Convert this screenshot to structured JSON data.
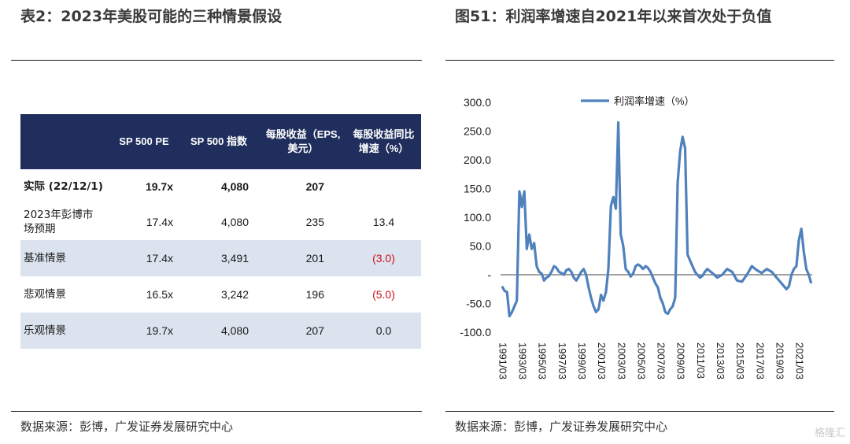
{
  "left_panel": {
    "title": "表2：2023年美股可能的三种情景假设",
    "source": "数据来源：彭博，广发证券发展研究中心",
    "table": {
      "headers": [
        "",
        "SP 500 PE",
        "SP 500 指数",
        "每股收益（EPS, 美元）",
        "每股收益同比增速（%）"
      ],
      "rows": [
        {
          "label": "实际 (22/12/1)",
          "pe": "19.7x",
          "index": "4,080",
          "eps": "207",
          "growth": "",
          "bold": true,
          "shade": false,
          "neg": false
        },
        {
          "label": "2023年彭博市场预期",
          "pe": "17.4x",
          "index": "4,080",
          "eps": "235",
          "growth": "13.4",
          "bold": false,
          "shade": false,
          "neg": false
        },
        {
          "label": "基准情景",
          "pe": "17.4x",
          "index": "3,491",
          "eps": "201",
          "growth": "(3.0)",
          "bold": false,
          "shade": true,
          "neg": true
        },
        {
          "label": "悲观情景",
          "pe": "16.5x",
          "index": "3,242",
          "eps": "196",
          "growth": "(5.0)",
          "bold": false,
          "shade": false,
          "neg": true
        },
        {
          "label": "乐观情景",
          "pe": "19.7x",
          "index": "4,080",
          "eps": "207",
          "growth": "0.0",
          "bold": false,
          "shade": true,
          "neg": false
        }
      ]
    }
  },
  "right_panel": {
    "title": "图51：利润率增速自2021年以来首次处于负值",
    "source": "数据来源：彭博，广发证券发展研究中心"
  },
  "watermark": "格隆汇",
  "chart_data": {
    "type": "line",
    "title": "",
    "xlabel": "",
    "ylabel": "",
    "ylim": [
      -100,
      300
    ],
    "yticks": [
      "300.0",
      "250.0",
      "200.0",
      "150.0",
      "100.0",
      "50.0",
      "-",
      "-50.0",
      "-100.0"
    ],
    "xticks": [
      "1991/03",
      "1993/03",
      "1995/03",
      "1997/03",
      "1999/03",
      "2001/03",
      "2003/03",
      "2005/03",
      "2007/03",
      "2009/03",
      "2011/03",
      "2013/03",
      "2015/03",
      "2017/03",
      "2019/03",
      "2021/03"
    ],
    "legend": "top-center",
    "grid": false,
    "line_color": "#4f81bd",
    "series": [
      {
        "name": "利润率增速（%）",
        "x": [
          1991.25,
          1991.5,
          1991.75,
          1992.0,
          1992.25,
          1992.5,
          1992.75,
          1993.0,
          1993.1,
          1993.25,
          1993.5,
          1993.75,
          1994.0,
          1994.25,
          1994.5,
          1994.75,
          1995.0,
          1995.25,
          1995.5,
          1995.75,
          1996.0,
          1996.25,
          1996.5,
          1996.75,
          1997.0,
          1997.25,
          1997.5,
          1997.75,
          1998.0,
          1998.25,
          1998.5,
          1998.75,
          1999.0,
          1999.25,
          1999.5,
          1999.75,
          2000.0,
          2000.25,
          2000.5,
          2000.75,
          2001.0,
          2001.25,
          2001.5,
          2001.75,
          2002.0,
          2002.25,
          2002.5,
          2002.75,
          2003.0,
          2003.25,
          2003.5,
          2003.75,
          2004.0,
          2004.25,
          2004.5,
          2004.75,
          2005.0,
          2005.25,
          2005.5,
          2005.75,
          2006.0,
          2006.25,
          2006.5,
          2006.75,
          2007.0,
          2007.25,
          2007.5,
          2007.75,
          2008.0,
          2008.25,
          2008.5,
          2008.75,
          2009.0,
          2009.25,
          2009.5,
          2009.75,
          2010.0,
          2010.25,
          2010.5,
          2010.75,
          2011.0,
          2011.25,
          2011.5,
          2011.75,
          2012.0,
          2012.5,
          2013.0,
          2013.5,
          2014.0,
          2014.5,
          2015.0,
          2015.5,
          2016.0,
          2016.5,
          2017.0,
          2017.5,
          2018.0,
          2018.5,
          2019.0,
          2019.5,
          2020.0,
          2020.25,
          2020.5,
          2020.75,
          2021.0,
          2021.25,
          2021.5,
          2021.75,
          2022.0,
          2022.25,
          2022.5
        ],
        "values": [
          -20,
          -28,
          -30,
          -72,
          -65,
          -55,
          -45,
          145,
          138,
          118,
          145,
          45,
          70,
          45,
          55,
          15,
          5,
          2,
          -10,
          -5,
          -2,
          5,
          15,
          12,
          5,
          3,
          0,
          8,
          10,
          5,
          -5,
          -10,
          -3,
          5,
          10,
          0,
          -22,
          -40,
          -55,
          -65,
          -60,
          -35,
          -45,
          -30,
          10,
          120,
          135,
          115,
          265,
          70,
          50,
          10,
          5,
          -3,
          2,
          15,
          18,
          15,
          10,
          15,
          12,
          5,
          -5,
          -15,
          -22,
          -40,
          -50,
          -65,
          -68,
          -60,
          -55,
          -40,
          160,
          215,
          240,
          220,
          35,
          25,
          15,
          5,
          0,
          -5,
          -2,
          5,
          10,
          3,
          -5,
          0,
          10,
          5,
          -10,
          -12,
          0,
          15,
          8,
          3,
          10,
          5,
          -5,
          -15,
          -25,
          -20,
          0,
          10,
          15,
          60,
          80,
          40,
          10,
          0,
          -15
        ]
      }
    ]
  }
}
